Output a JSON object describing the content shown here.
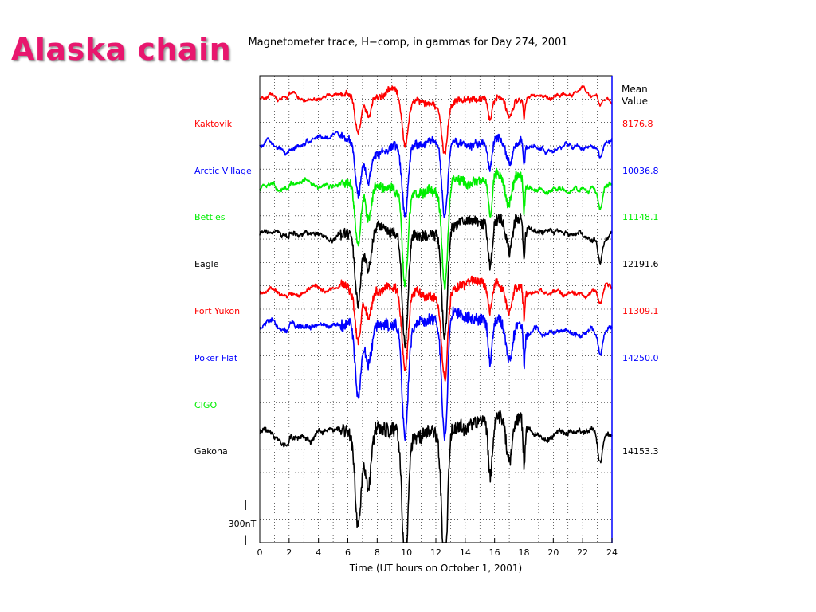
{
  "slide_title": "Alaska chain",
  "colors": {
    "red": "#ff0000",
    "blue": "#0000ff",
    "green": "#00ee00",
    "black": "#000000",
    "title": "#e8176e"
  },
  "chart_data": {
    "type": "line",
    "title": "Magnetometer trace, H−comp, in gammas for Day 274, 2001",
    "xlabel": "Time (UT hours on October 1, 2001)",
    "xlim": [
      0,
      24
    ],
    "x_ticks": [
      "0",
      "2",
      "4",
      "6",
      "8",
      "10",
      "12",
      "14",
      "16",
      "18",
      "20",
      "22",
      "24"
    ],
    "grid": true,
    "mean_header": [
      "Mean",
      "Value"
    ],
    "scale_label": "300nT",
    "scale_marker": "I",
    "stations": [
      {
        "name": "Kaktovik",
        "mean": "8176.8",
        "color": "#ff0000"
      },
      {
        "name": "Arctic Village",
        "mean": "10036.8",
        "color": "#0000ff"
      },
      {
        "name": "Bettles",
        "mean": "11148.1",
        "color": "#00ee00"
      },
      {
        "name": "Eagle",
        "mean": "12191.6",
        "color": "#000000"
      },
      {
        "name": "Fort Yukon",
        "mean": "11309.1",
        "color": "#ff0000"
      },
      {
        "name": "Poker Flat",
        "mean": "14250.0",
        "color": "#0000ff"
      },
      {
        "name": "CIGO",
        "mean": "",
        "color": "#00ee00"
      },
      {
        "name": "Gakona",
        "mean": "14153.3",
        "color": "#000000"
      }
    ]
  }
}
